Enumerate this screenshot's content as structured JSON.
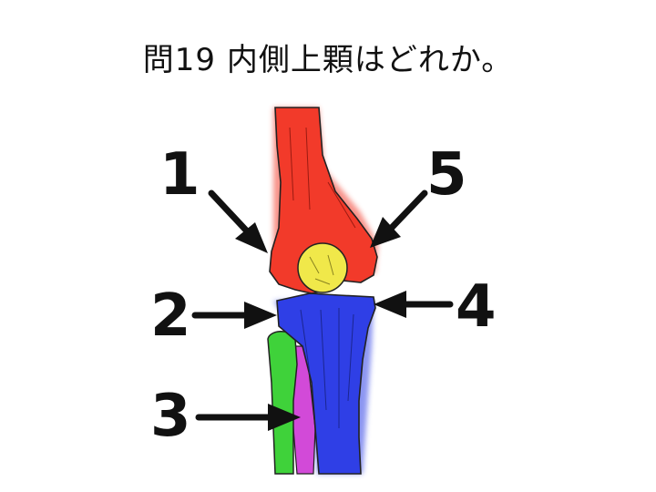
{
  "question": {
    "title": "問19 内側上顆はどれか。"
  },
  "labels": [
    "1",
    "2",
    "3",
    "4",
    "5"
  ],
  "colors": {
    "femur": "#f23a2a",
    "patella": "#f0e84a",
    "tibia": "#2f3fe6",
    "fibula": "#3fd23a",
    "interosseous": "#d24ad8",
    "arrow": "#111111"
  }
}
